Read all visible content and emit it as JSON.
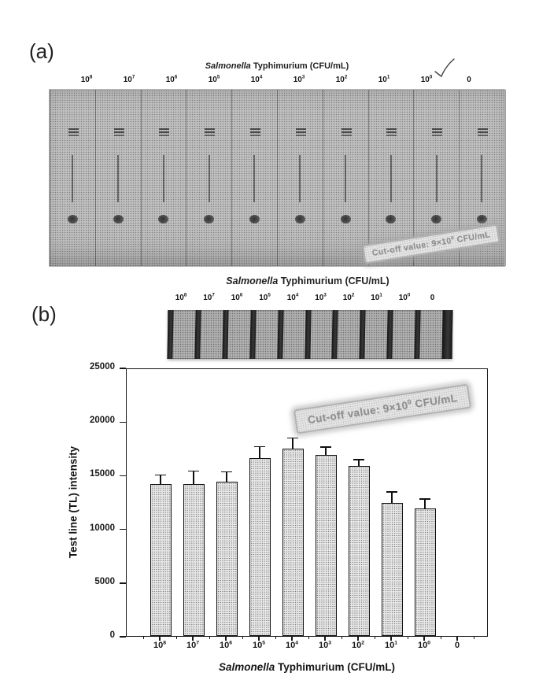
{
  "figure_labels": {
    "panel_a": "(a)",
    "panel_b": "(b)"
  },
  "panel_a": {
    "title": "Salmonella Typhimurium (CFU/mL)",
    "concentration_labels": [
      "10^8",
      "10^7",
      "10^6",
      "10^5",
      "10^4",
      "10^3",
      "10^2",
      "10^1",
      "10^0",
      "0"
    ],
    "cutoff_stamp": "Cut-off value: 9×10^0 CFU/mL",
    "annotation": "checkmark"
  },
  "panel_b": {
    "strip_title": "Salmonella Typhimurium (CFU/mL)",
    "strip_labels": [
      "10^8",
      "10^7",
      "10^6",
      "10^5",
      "10^4",
      "10^3",
      "10^2",
      "10^1",
      "10^0",
      "0"
    ],
    "cutoff_stamp": "Cut-off value: 9×10^0 CFU/mL"
  },
  "chart_data": {
    "type": "bar",
    "title": "",
    "categories": [
      "10^8",
      "10^7",
      "10^6",
      "10^5",
      "10^4",
      "10^3",
      "10^2",
      "10^1",
      "10^0",
      "0"
    ],
    "values": [
      14300,
      14300,
      14500,
      16700,
      17600,
      17000,
      16000,
      12500,
      12000,
      0
    ],
    "errors": [
      900,
      1250,
      1000,
      1150,
      1050,
      800,
      650,
      1100,
      950,
      0
    ],
    "xlabel": "Salmonella Typhimurium (CFU/mL)",
    "ylabel": "Test line (TL) intensity",
    "ylim": [
      0,
      25000
    ],
    "yticks": [
      0,
      5000,
      10000,
      15000,
      20000,
      25000
    ],
    "grid": false,
    "legend": false,
    "bar_fill": "#e7e7e7",
    "bar_border": "#101010"
  }
}
